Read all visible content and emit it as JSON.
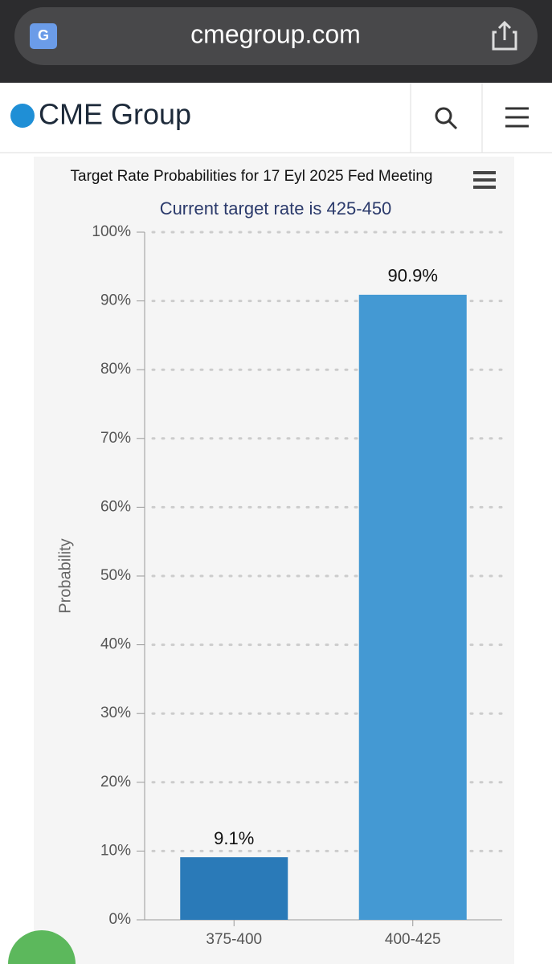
{
  "browser": {
    "url": "cmegroup.com"
  },
  "header": {
    "logo": "CME Group"
  },
  "chart_data": {
    "type": "bar",
    "title": "Target Rate Probabilities for 17 Eyl 2025 Fed Meeting",
    "subtitle": "Current target rate is 425-450",
    "y_label": "Probability",
    "categories": [
      "375-400",
      "400-425"
    ],
    "values": [
      9.1,
      90.9
    ],
    "value_labels": [
      "9.1%",
      "90.9%"
    ],
    "colors": [
      "#2a7ab8",
      "#4499d3"
    ],
    "ylim": [
      0,
      100
    ],
    "yticks": [
      {
        "value": 0,
        "label": "0%"
      },
      {
        "value": 10,
        "label": "10%"
      },
      {
        "value": 20,
        "label": "20%"
      },
      {
        "value": 30,
        "label": "30%"
      },
      {
        "value": 40,
        "label": "40%"
      },
      {
        "value": 50,
        "label": "50%"
      },
      {
        "value": 60,
        "label": "60%"
      },
      {
        "value": 70,
        "label": "70%"
      },
      {
        "value": 80,
        "label": "80%"
      },
      {
        "value": 90,
        "label": "90%"
      },
      {
        "value": 100,
        "label": "100%"
      }
    ],
    "grid": true
  }
}
